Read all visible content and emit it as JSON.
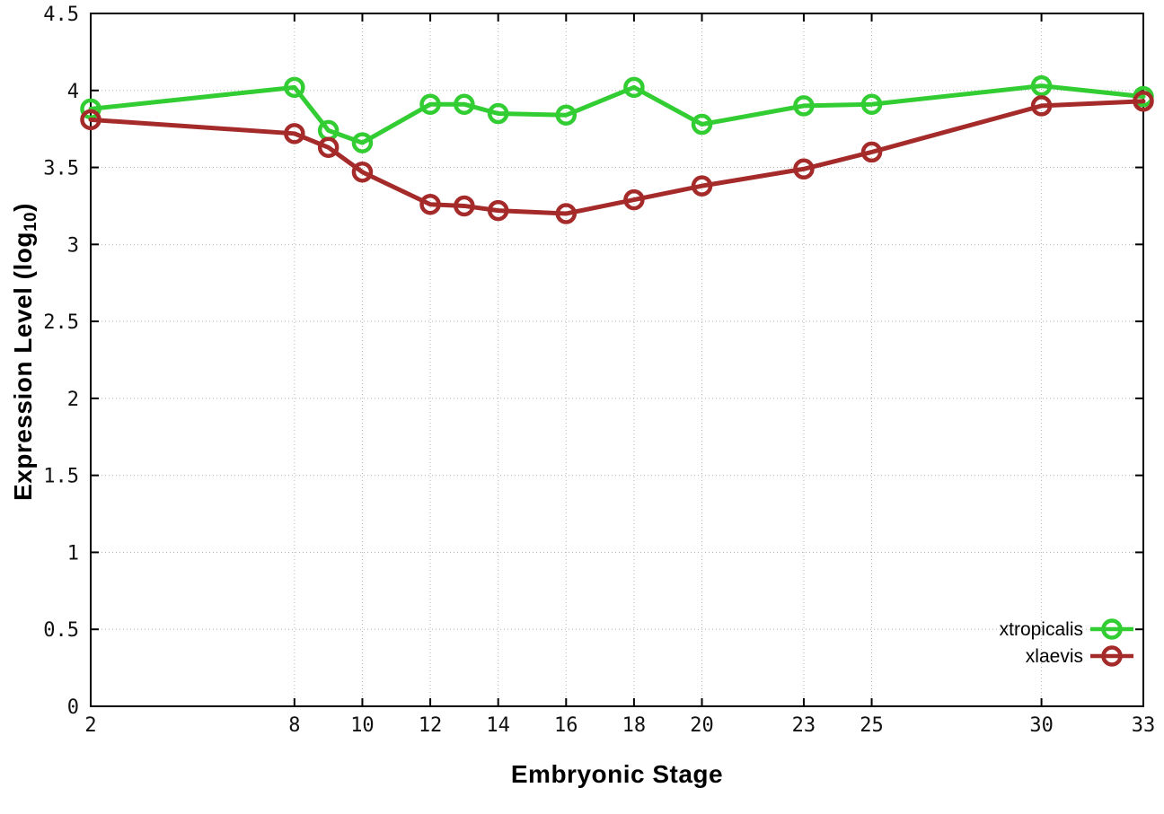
{
  "page": {
    "background": "#ffffff"
  },
  "chart_data": {
    "type": "line",
    "title": "",
    "xlabel": "Embryonic Stage",
    "ylabel": "Expression Level (log10)",
    "ylabel_main": "Expression Level (log",
    "ylabel_sub": "10",
    "ylabel_close": ")",
    "xlim": [
      2,
      33
    ],
    "ylim": [
      0,
      4.5
    ],
    "x_ticks": [
      2,
      8,
      10,
      12,
      14,
      16,
      18,
      20,
      23,
      25,
      30,
      33
    ],
    "y_ticks": [
      "0",
      "0.5",
      "1",
      "1.5",
      "2",
      "2.5",
      "3",
      "3.5",
      "4",
      "4.5"
    ],
    "grid": true,
    "legend_position": "bottom-right-inside",
    "x": [
      2,
      8,
      9,
      10,
      12,
      13,
      14,
      16,
      18,
      20,
      23,
      25,
      30,
      33
    ],
    "series": [
      {
        "name": "xtropicalis",
        "color": "#32cd32",
        "values": [
          3.88,
          4.02,
          3.74,
          3.66,
          3.91,
          3.91,
          3.85,
          3.84,
          4.02,
          3.78,
          3.9,
          3.91,
          4.03,
          3.96
        ]
      },
      {
        "name": "xlaevis",
        "color": "#a52a2a",
        "values": [
          3.81,
          3.72,
          3.63,
          3.47,
          3.26,
          3.25,
          3.22,
          3.2,
          3.29,
          3.38,
          3.49,
          3.6,
          3.9,
          3.93
        ]
      }
    ],
    "style": {
      "axis_color": "#000000",
      "grid_color": "#b4b4b4",
      "tick_label_color": "#111111",
      "legend_text_color": "#000000"
    }
  }
}
